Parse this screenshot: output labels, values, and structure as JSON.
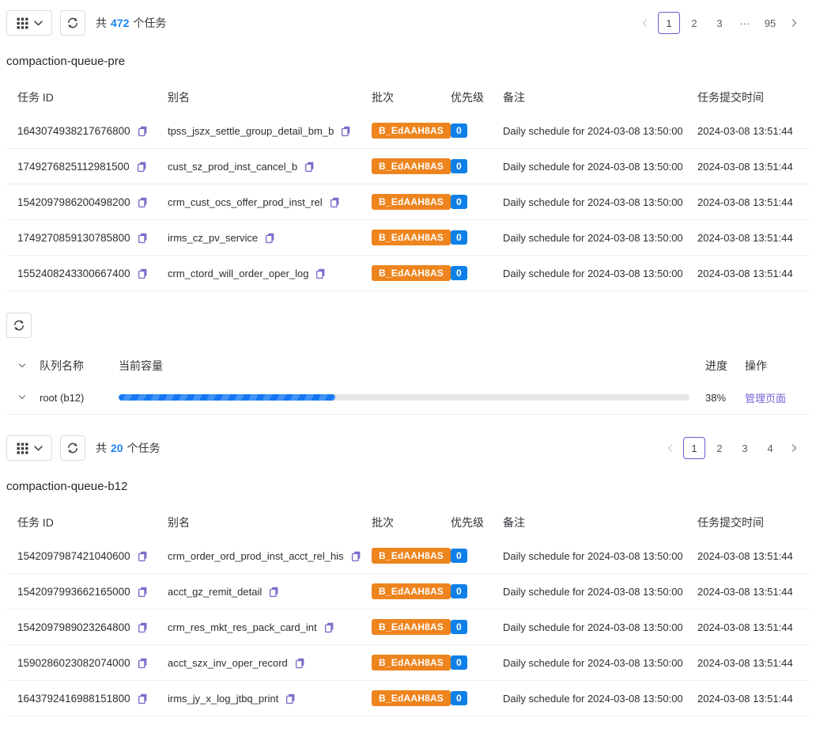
{
  "colors": {
    "accent_blue": "#1B82F2",
    "priority_badge_blue": "#0E80E8",
    "batch_badge_orange": "#EE841D",
    "link_purple": "#7164DA",
    "copy_icon_purple": "#7B6FCB",
    "pagination_active_border": "#655CCF",
    "progress_fill_blue": "#1677F2",
    "progress_track_gray": "#E7E7EA"
  },
  "icons": {
    "apps": "apps-grid-icon",
    "dropdown": "chevron-down-icon",
    "refresh": "refresh-icon",
    "copy": "copy-icon",
    "prev": "chevron-left-icon",
    "next": "chevron-right-icon",
    "collapse": "chevron-down-icon"
  },
  "pre": {
    "toolbar": {
      "total_prefix": "共",
      "total_count": "472",
      "total_suffix": "个任务"
    },
    "pagination": {
      "pages": [
        "1",
        "2",
        "3",
        "···",
        "95"
      ],
      "active": "1"
    },
    "title": "compaction-queue-pre",
    "table": {
      "headers": [
        "任务 ID",
        "别名",
        "批次",
        "优先级",
        "备注",
        "任务提交时间"
      ],
      "rows": [
        {
          "id": "1643074938217676800",
          "alias": "tpss_jszx_settle_group_detail_bm_b",
          "batch": "B_EdAAH8AS",
          "priority": "0",
          "remark": "Daily schedule for 2024-03-08 13:50:00",
          "submitted": "2024-03-08 13:51:44"
        },
        {
          "id": "1749276825112981500",
          "alias": "cust_sz_prod_inst_cancel_b",
          "batch": "B_EdAAH8AS",
          "priority": "0",
          "remark": "Daily schedule for 2024-03-08 13:50:00",
          "submitted": "2024-03-08 13:51:44"
        },
        {
          "id": "1542097986200498200",
          "alias": "crm_cust_ocs_offer_prod_inst_rel",
          "batch": "B_EdAAH8AS",
          "priority": "0",
          "remark": "Daily schedule for 2024-03-08 13:50:00",
          "submitted": "2024-03-08 13:51:44"
        },
        {
          "id": "1749270859130785800",
          "alias": "irms_cz_pv_service",
          "batch": "B_EdAAH8AS",
          "priority": "0",
          "remark": "Daily schedule for 2024-03-08 13:50:00",
          "submitted": "2024-03-08 13:51:44"
        },
        {
          "id": "1552408243300667400",
          "alias": "crm_ctord_will_order_oper_log",
          "batch": "B_EdAAH8AS",
          "priority": "0",
          "remark": "Daily schedule for 2024-03-08 13:50:00",
          "submitted": "2024-03-08 13:51:44"
        }
      ]
    }
  },
  "queue": {
    "headers": {
      "name": "队列名称",
      "capacity": "当前容量",
      "progress": "进度",
      "action": "操作"
    },
    "rows": [
      {
        "name": "root (b12)",
        "progress_pct": 38,
        "progress_text": "38%",
        "action": "管理页面"
      }
    ]
  },
  "b12": {
    "toolbar": {
      "total_prefix": "共",
      "total_count": "20",
      "total_suffix": "个任务"
    },
    "pagination": {
      "pages": [
        "1",
        "2",
        "3",
        "4"
      ],
      "active": "1"
    },
    "title": "compaction-queue-b12",
    "table": {
      "headers": [
        "任务 ID",
        "别名",
        "批次",
        "优先级",
        "备注",
        "任务提交时间"
      ],
      "rows": [
        {
          "id": "1542097987421040600",
          "alias": "crm_order_ord_prod_inst_acct_rel_his",
          "batch": "B_EdAAH8AS",
          "priority": "0",
          "remark": "Daily schedule for 2024-03-08 13:50:00",
          "submitted": "2024-03-08 13:51:44"
        },
        {
          "id": "1542097993662165000",
          "alias": "acct_gz_remit_detail",
          "batch": "B_EdAAH8AS",
          "priority": "0",
          "remark": "Daily schedule for 2024-03-08 13:50:00",
          "submitted": "2024-03-08 13:51:44"
        },
        {
          "id": "1542097989023264800",
          "alias": "crm_res_mkt_res_pack_card_int",
          "batch": "B_EdAAH8AS",
          "priority": "0",
          "remark": "Daily schedule for 2024-03-08 13:50:00",
          "submitted": "2024-03-08 13:51:44"
        },
        {
          "id": "1590286023082074000",
          "alias": "acct_szx_inv_oper_record",
          "batch": "B_EdAAH8AS",
          "priority": "0",
          "remark": "Daily schedule for 2024-03-08 13:50:00",
          "submitted": "2024-03-08 13:51:44"
        },
        {
          "id": "1643792416988151800",
          "alias": "irms_jy_x_log_jtbq_print",
          "batch": "B_EdAAH8AS",
          "priority": "0",
          "remark": "Daily schedule for 2024-03-08 13:50:00",
          "submitted": "2024-03-08 13:51:44"
        }
      ]
    }
  }
}
